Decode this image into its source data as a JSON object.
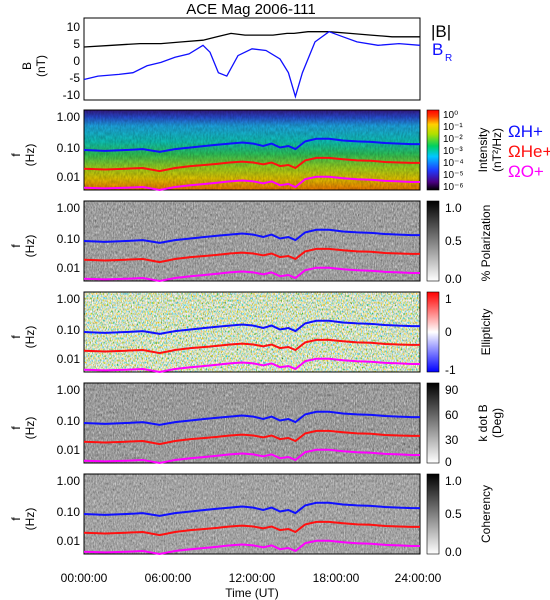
{
  "chart_data": [
    {
      "type": "line",
      "title": "ACE Mag 2006-111",
      "ylabel": "B",
      "yunits": "(nT)",
      "yticks": [
        "10",
        "5",
        "0",
        "-5",
        "-10"
      ],
      "ylim": [
        -11,
        13
      ],
      "xlim": [
        0,
        24
      ],
      "legend": [
        "|B|",
        "B",
        "R"
      ],
      "series": [
        {
          "name": "|B|",
          "color": "#000000",
          "x": [
            0,
            2,
            4,
            5.5,
            7,
            8.5,
            9.5,
            10.5,
            11.5,
            12.5,
            13.5,
            14.5,
            15,
            16,
            17.5,
            19,
            20.5,
            22,
            24
          ],
          "values": [
            4.5,
            5,
            5.5,
            5.5,
            6,
            6.5,
            7.5,
            8.5,
            8,
            8,
            8,
            8.5,
            8.5,
            9,
            9,
            8.5,
            8,
            7.5,
            7.5
          ]
        },
        {
          "name": "B_R",
          "color": "#1010ff",
          "x": [
            0,
            1,
            2.5,
            3.5,
            4.5,
            5.5,
            6.5,
            7.5,
            8.5,
            9,
            9.6,
            10.2,
            11,
            12,
            13,
            14,
            14.6,
            15.1,
            15.6,
            16.5,
            17.5,
            18.5,
            19.5,
            21,
            22.5,
            24
          ],
          "values": [
            -5,
            -4,
            -3.5,
            -3,
            -1,
            0,
            1.5,
            2.5,
            5,
            3,
            -3,
            -4,
            2,
            4,
            3.5,
            1,
            -3,
            -10,
            -3,
            6,
            9,
            7.5,
            6,
            5,
            5.5,
            5
          ]
        }
      ]
    },
    {
      "type": "heatmap",
      "ylabel": "f",
      "yunits": "(Hz)",
      "yticks": [
        "1.00",
        "0.10",
        "0.01"
      ],
      "colorbar_label": "Intensity",
      "colorbar_units": "(nT²/Hz)",
      "colorbar_ticks": [
        "10⁰",
        "10⁻¹",
        "10⁻²",
        "10⁻³",
        "10⁻⁴",
        "10⁻⁵",
        "10⁻⁶"
      ],
      "legend": [
        {
          "name": "ΩH+",
          "color": "#1010ff"
        },
        {
          "name": "ΩHe+",
          "color": "#ff1010"
        },
        {
          "name": "ΩO+",
          "color": "#ff00ff"
        }
      ]
    },
    {
      "type": "heatmap",
      "ylabel": "f",
      "yunits": "(Hz)",
      "yticks": [
        "1.00",
        "0.10",
        "0.01"
      ],
      "colorbar_label": "% Polarization",
      "colorbar_ticks": [
        "1.0",
        "0.5",
        "0.0"
      ]
    },
    {
      "type": "heatmap",
      "ylabel": "f",
      "yunits": "(Hz)",
      "yticks": [
        "1.00",
        "0.10",
        "0.01"
      ],
      "colorbar_label": "Ellipticity",
      "colorbar_ticks": [
        "1",
        "0",
        "-1"
      ]
    },
    {
      "type": "heatmap",
      "ylabel": "f",
      "yunits": "(Hz)",
      "yticks": [
        "1.00",
        "0.10",
        "0.01"
      ],
      "colorbar_label": "k dot B",
      "colorbar_units": "(Deg)",
      "colorbar_ticks": [
        "90",
        "60",
        "30",
        "0"
      ]
    },
    {
      "type": "heatmap",
      "ylabel": "f",
      "yunits": "(Hz)",
      "yticks": [
        "1.00",
        "0.10",
        "0.01"
      ],
      "colorbar_label": "Coherency",
      "colorbar_ticks": [
        "1.0",
        "0.5",
        "0.0"
      ],
      "xlabel": "Time (UT)",
      "xticks": [
        "00:00:00",
        "06:00:00",
        "12:00:00",
        "18:00:00",
        "24:00:00"
      ]
    }
  ],
  "gyrofrequency_lines": {
    "x_hours": [
      0,
      1.5,
      3,
      4.2,
      5.4,
      6.5,
      7.6,
      8.6,
      9.5,
      10.4,
      11.3,
      12.1,
      12.8,
      13.4,
      14,
      14.6,
      15.1,
      15.8,
      16.6,
      17.5,
      18.5,
      19.5,
      20.5,
      21.5,
      22.5,
      23.4,
      24
    ],
    "H_plus_hz": [
      0.075,
      0.07,
      0.075,
      0.08,
      0.065,
      0.08,
      0.09,
      0.1,
      0.11,
      0.12,
      0.13,
      0.12,
      0.1,
      0.12,
      0.09,
      0.1,
      0.08,
      0.14,
      0.17,
      0.17,
      0.15,
      0.14,
      0.135,
      0.125,
      0.12,
      0.115,
      0.115
    ],
    "He_plus_hz": [
      0.019,
      0.018,
      0.019,
      0.02,
      0.016,
      0.02,
      0.023,
      0.025,
      0.027,
      0.03,
      0.032,
      0.03,
      0.026,
      0.03,
      0.023,
      0.025,
      0.02,
      0.035,
      0.042,
      0.042,
      0.038,
      0.035,
      0.034,
      0.031,
      0.03,
      0.029,
      0.029
    ],
    "O_plus_hz": [
      0.0047,
      0.0045,
      0.0047,
      0.005,
      0.004,
      0.005,
      0.0057,
      0.0062,
      0.0068,
      0.0075,
      0.008,
      0.0075,
      0.0065,
      0.0075,
      0.0057,
      0.0062,
      0.005,
      0.0088,
      0.0105,
      0.0105,
      0.0095,
      0.0088,
      0.0085,
      0.0078,
      0.0075,
      0.0072,
      0.0072
    ]
  }
}
